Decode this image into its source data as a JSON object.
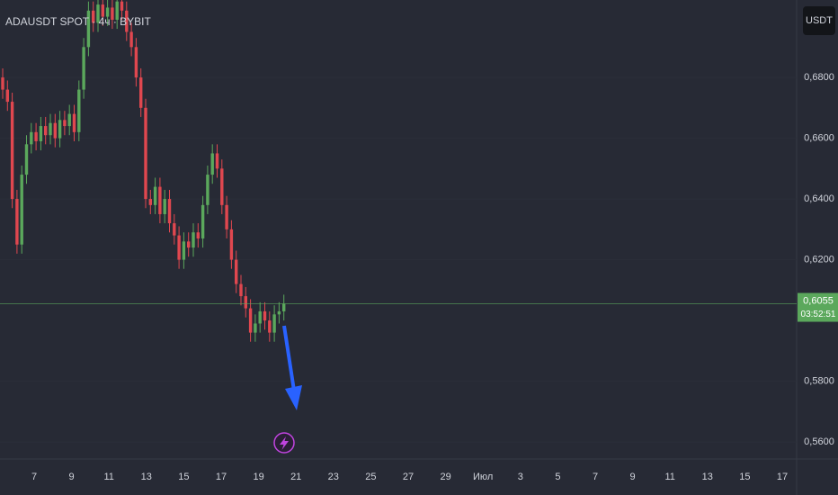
{
  "chart_data": {
    "type": "candlestick",
    "title": "ADAUSDT SPOT · 4ч · BYBIT",
    "currency": "USDT",
    "up_color": "#5ba85c",
    "down_color": "#e0474f",
    "open": [
      0.68,
      0.676,
      0.672,
      0.64,
      0.625,
      0.648,
      0.658,
      0.662,
      0.659,
      0.664,
      0.661,
      0.665,
      0.66,
      0.666,
      0.664,
      0.668,
      0.662,
      0.676,
      0.69,
      0.702,
      0.698,
      0.704,
      0.7,
      0.703,
      0.699,
      0.705,
      0.702,
      0.695,
      0.69,
      0.68,
      0.67,
      0.64,
      0.638,
      0.644,
      0.635,
      0.64,
      0.632,
      0.628,
      0.62,
      0.626,
      0.624,
      0.629,
      0.627,
      0.638,
      0.648,
      0.655,
      0.65,
      0.638,
      0.63,
      0.62,
      0.612,
      0.608,
      0.604,
      0.596,
      0.599,
      0.603,
      0.6,
      0.596,
      0.602,
      0.603
    ],
    "high": [
      0.683,
      0.679,
      0.675,
      0.643,
      0.651,
      0.661,
      0.665,
      0.665,
      0.667,
      0.667,
      0.668,
      0.668,
      0.669,
      0.669,
      0.671,
      0.671,
      0.679,
      0.693,
      0.705,
      0.705,
      0.707,
      0.707,
      0.706,
      0.706,
      0.708,
      0.708,
      0.705,
      0.698,
      0.693,
      0.683,
      0.673,
      0.643,
      0.647,
      0.647,
      0.643,
      0.643,
      0.635,
      0.631,
      0.629,
      0.629,
      0.632,
      0.632,
      0.641,
      0.651,
      0.658,
      0.658,
      0.653,
      0.641,
      0.633,
      0.623,
      0.615,
      0.611,
      0.607,
      0.602,
      0.606,
      0.606,
      0.603,
      0.605,
      0.606,
      0.6085
    ],
    "low": [
      0.673,
      0.669,
      0.637,
      0.622,
      0.622,
      0.645,
      0.655,
      0.656,
      0.656,
      0.658,
      0.658,
      0.657,
      0.657,
      0.661,
      0.661,
      0.659,
      0.659,
      0.673,
      0.687,
      0.695,
      0.695,
      0.697,
      0.697,
      0.696,
      0.696,
      0.699,
      0.692,
      0.687,
      0.677,
      0.667,
      0.637,
      0.635,
      0.635,
      0.632,
      0.632,
      0.629,
      0.625,
      0.617,
      0.617,
      0.621,
      0.621,
      0.624,
      0.624,
      0.635,
      0.645,
      0.647,
      0.635,
      0.627,
      0.617,
      0.609,
      0.605,
      0.601,
      0.593,
      0.593,
      0.596,
      0.597,
      0.593,
      0.593,
      0.599,
      0.6
    ],
    "close": [
      0.676,
      0.672,
      0.64,
      0.625,
      0.648,
      0.658,
      0.662,
      0.659,
      0.664,
      0.661,
      0.665,
      0.66,
      0.666,
      0.664,
      0.668,
      0.662,
      0.676,
      0.69,
      0.702,
      0.698,
      0.704,
      0.7,
      0.703,
      0.699,
      0.705,
      0.702,
      0.695,
      0.69,
      0.68,
      0.67,
      0.64,
      0.638,
      0.644,
      0.635,
      0.64,
      0.632,
      0.628,
      0.62,
      0.626,
      0.624,
      0.629,
      0.627,
      0.638,
      0.648,
      0.655,
      0.65,
      0.638,
      0.63,
      0.62,
      0.612,
      0.608,
      0.604,
      0.596,
      0.599,
      0.603,
      0.6,
      0.596,
      0.602,
      0.603,
      0.6055
    ],
    "ylim": [
      0.5544,
      0.7055
    ],
    "yticks": [
      {
        "value": 0.56,
        "label": "0,5600"
      },
      {
        "value": 0.58,
        "label": "0,5800"
      },
      {
        "value": 0.62,
        "label": "0,6200"
      },
      {
        "value": 0.64,
        "label": "0,6400"
      },
      {
        "value": 0.66,
        "label": "0,6600"
      },
      {
        "value": 0.68,
        "label": "0,6800"
      }
    ],
    "date_labels": [
      "7",
      "9",
      "11",
      "13",
      "15",
      "17",
      "19",
      "21",
      "23",
      "25",
      "27",
      "29",
      "Июл",
      "3",
      "5",
      "7",
      "9",
      "11",
      "13",
      "15",
      "17"
    ],
    "last_price": {
      "value": 0.6055,
      "label": "0,6055"
    },
    "countdown": "03:52:51"
  }
}
